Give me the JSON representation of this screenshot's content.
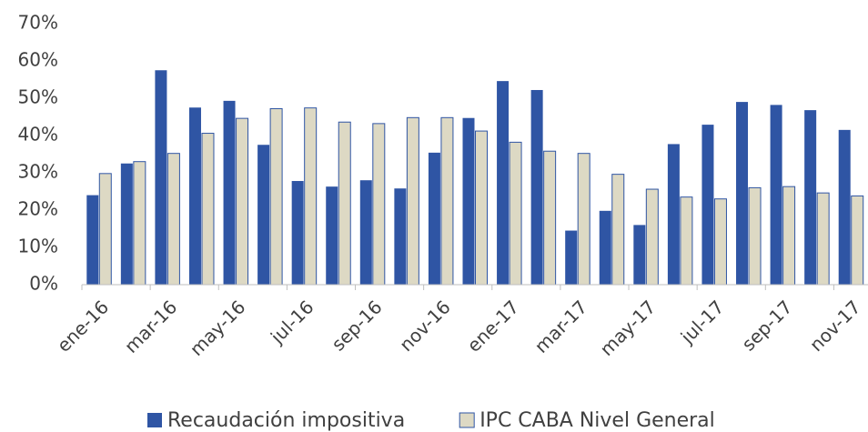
{
  "chart_data": {
    "type": "bar",
    "categories": [
      "ene-16",
      null,
      "mar-16",
      null,
      "may-16",
      null,
      "jul-16",
      null,
      "sep-16",
      null,
      "nov-16",
      null,
      "ene-17",
      null,
      "mar-17",
      null,
      "may-17",
      null,
      "jul-17",
      null,
      "sep-17",
      null,
      "nov-17"
    ],
    "series": [
      {
        "name": "Recaudación impositiva",
        "color": "#2f55a4",
        "values": [
          24,
          32.5,
          57.5,
          47.5,
          49.3,
          37.5,
          27.8,
          26.3,
          28,
          25.8,
          35.4,
          44.7,
          54.6,
          52.2,
          14.5,
          19.8,
          16,
          37.7,
          42.9,
          49,
          48.2,
          46.8,
          41.5
        ]
      },
      {
        "name": "IPC CABA Nivel General",
        "color": "#ddd9c4",
        "values": [
          29.8,
          33,
          35.2,
          40.6,
          44.6,
          47.2,
          47.4,
          43.6,
          43.2,
          44.8,
          44.8,
          41.2,
          38.2,
          35.8,
          35.2,
          29.6,
          25.6,
          23.5,
          23,
          26,
          26.3,
          24.6,
          23.8
        ]
      }
    ],
    "ylim": [
      0,
      70
    ],
    "yticks": [
      {
        "value": 0,
        "label": "0%"
      },
      {
        "value": 10,
        "label": "10%"
      },
      {
        "value": 20,
        "label": "20%"
      },
      {
        "value": 30,
        "label": "30%"
      },
      {
        "value": 40,
        "label": "40%"
      },
      {
        "value": 50,
        "label": "50%"
      },
      {
        "value": 60,
        "label": "60%"
      },
      {
        "value": 70,
        "label": "70%"
      }
    ],
    "grid": false,
    "legend": "bottom"
  }
}
